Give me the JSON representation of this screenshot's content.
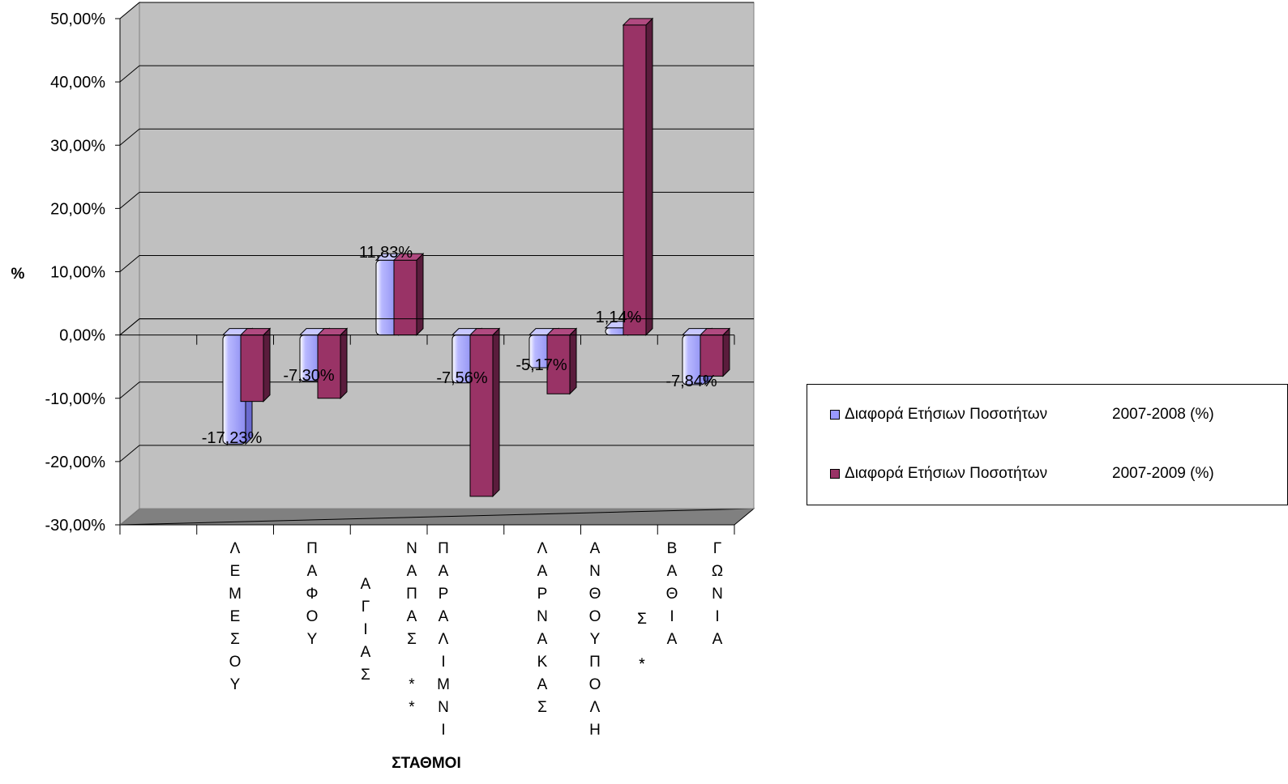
{
  "chart_data": {
    "type": "bar",
    "ylabel": "%",
    "xlabel": "ΣΤΑΘΜΟΙ",
    "ylim": [
      -30,
      50
    ],
    "yticks": [
      "50,00%",
      "40,00%",
      "30,00%",
      "20,00%",
      "10,00%",
      "0,00%",
      "-10,00%",
      "-20,00%",
      "-30,00%"
    ],
    "categories": [
      [
        "Λ",
        "Ε",
        "Μ",
        "Ε",
        "Σ",
        "Ο",
        "Υ"
      ],
      [
        "Π",
        "Α",
        "Φ",
        "Ο",
        "Υ"
      ],
      [
        "Α",
        "Γ",
        "Ι",
        "Α",
        "Σ"
      ],
      [
        "Ν",
        "Α",
        "Π",
        "Α",
        "Σ",
        "",
        "*",
        "*"
      ],
      [
        "Π",
        "Α",
        "Ρ",
        "Α",
        "Λ",
        "Ι",
        "Μ",
        "Ν",
        "Ι"
      ],
      [
        "Σ",
        "",
        "*"
      ],
      [
        "Λ",
        "Α",
        "Ρ",
        "Ν",
        "Α",
        "Κ",
        "Α",
        "Σ"
      ],
      [
        "Α",
        "Ν",
        "Θ",
        "Ο",
        "Υ",
        "Π",
        "Ο",
        "Λ",
        "Η"
      ],
      [
        "Σ",
        "",
        "*"
      ],
      [
        "Β",
        "Α",
        "Θ",
        "Ι",
        "Α"
      ],
      [
        "Γ",
        "Ω",
        "Ν",
        "Ι",
        "Α"
      ]
    ],
    "groups": [
      {
        "a": -17.23,
        "b": -10.5,
        "label": "-17,23%"
      },
      {
        "a": -7.3,
        "b": -10.0,
        "label": "-7,30%"
      },
      {
        "a": 11.83,
        "b": 11.83,
        "label": "11,83%"
      },
      {
        "a": -7.56,
        "b": -25.5,
        "label": "-7,56%"
      },
      {
        "a": -5.17,
        "b": -9.3,
        "label": "-5,17%"
      },
      {
        "a": 1.14,
        "b": 49.0,
        "label": "1,14%"
      },
      {
        "a": -7.84,
        "b": -6.5,
        "label": "-7,84%"
      }
    ],
    "series": [
      {
        "name": "Διαφορά Ετήσιων Ποσοτήτων",
        "period": "2007-2008 (%)",
        "color": "#9999FF"
      },
      {
        "name": "Διαφορά Ετήσιων Ποσοτήτων",
        "period": "2007-2009 (%)",
        "color": "#993366"
      }
    ],
    "grid": true,
    "legend": "right"
  }
}
